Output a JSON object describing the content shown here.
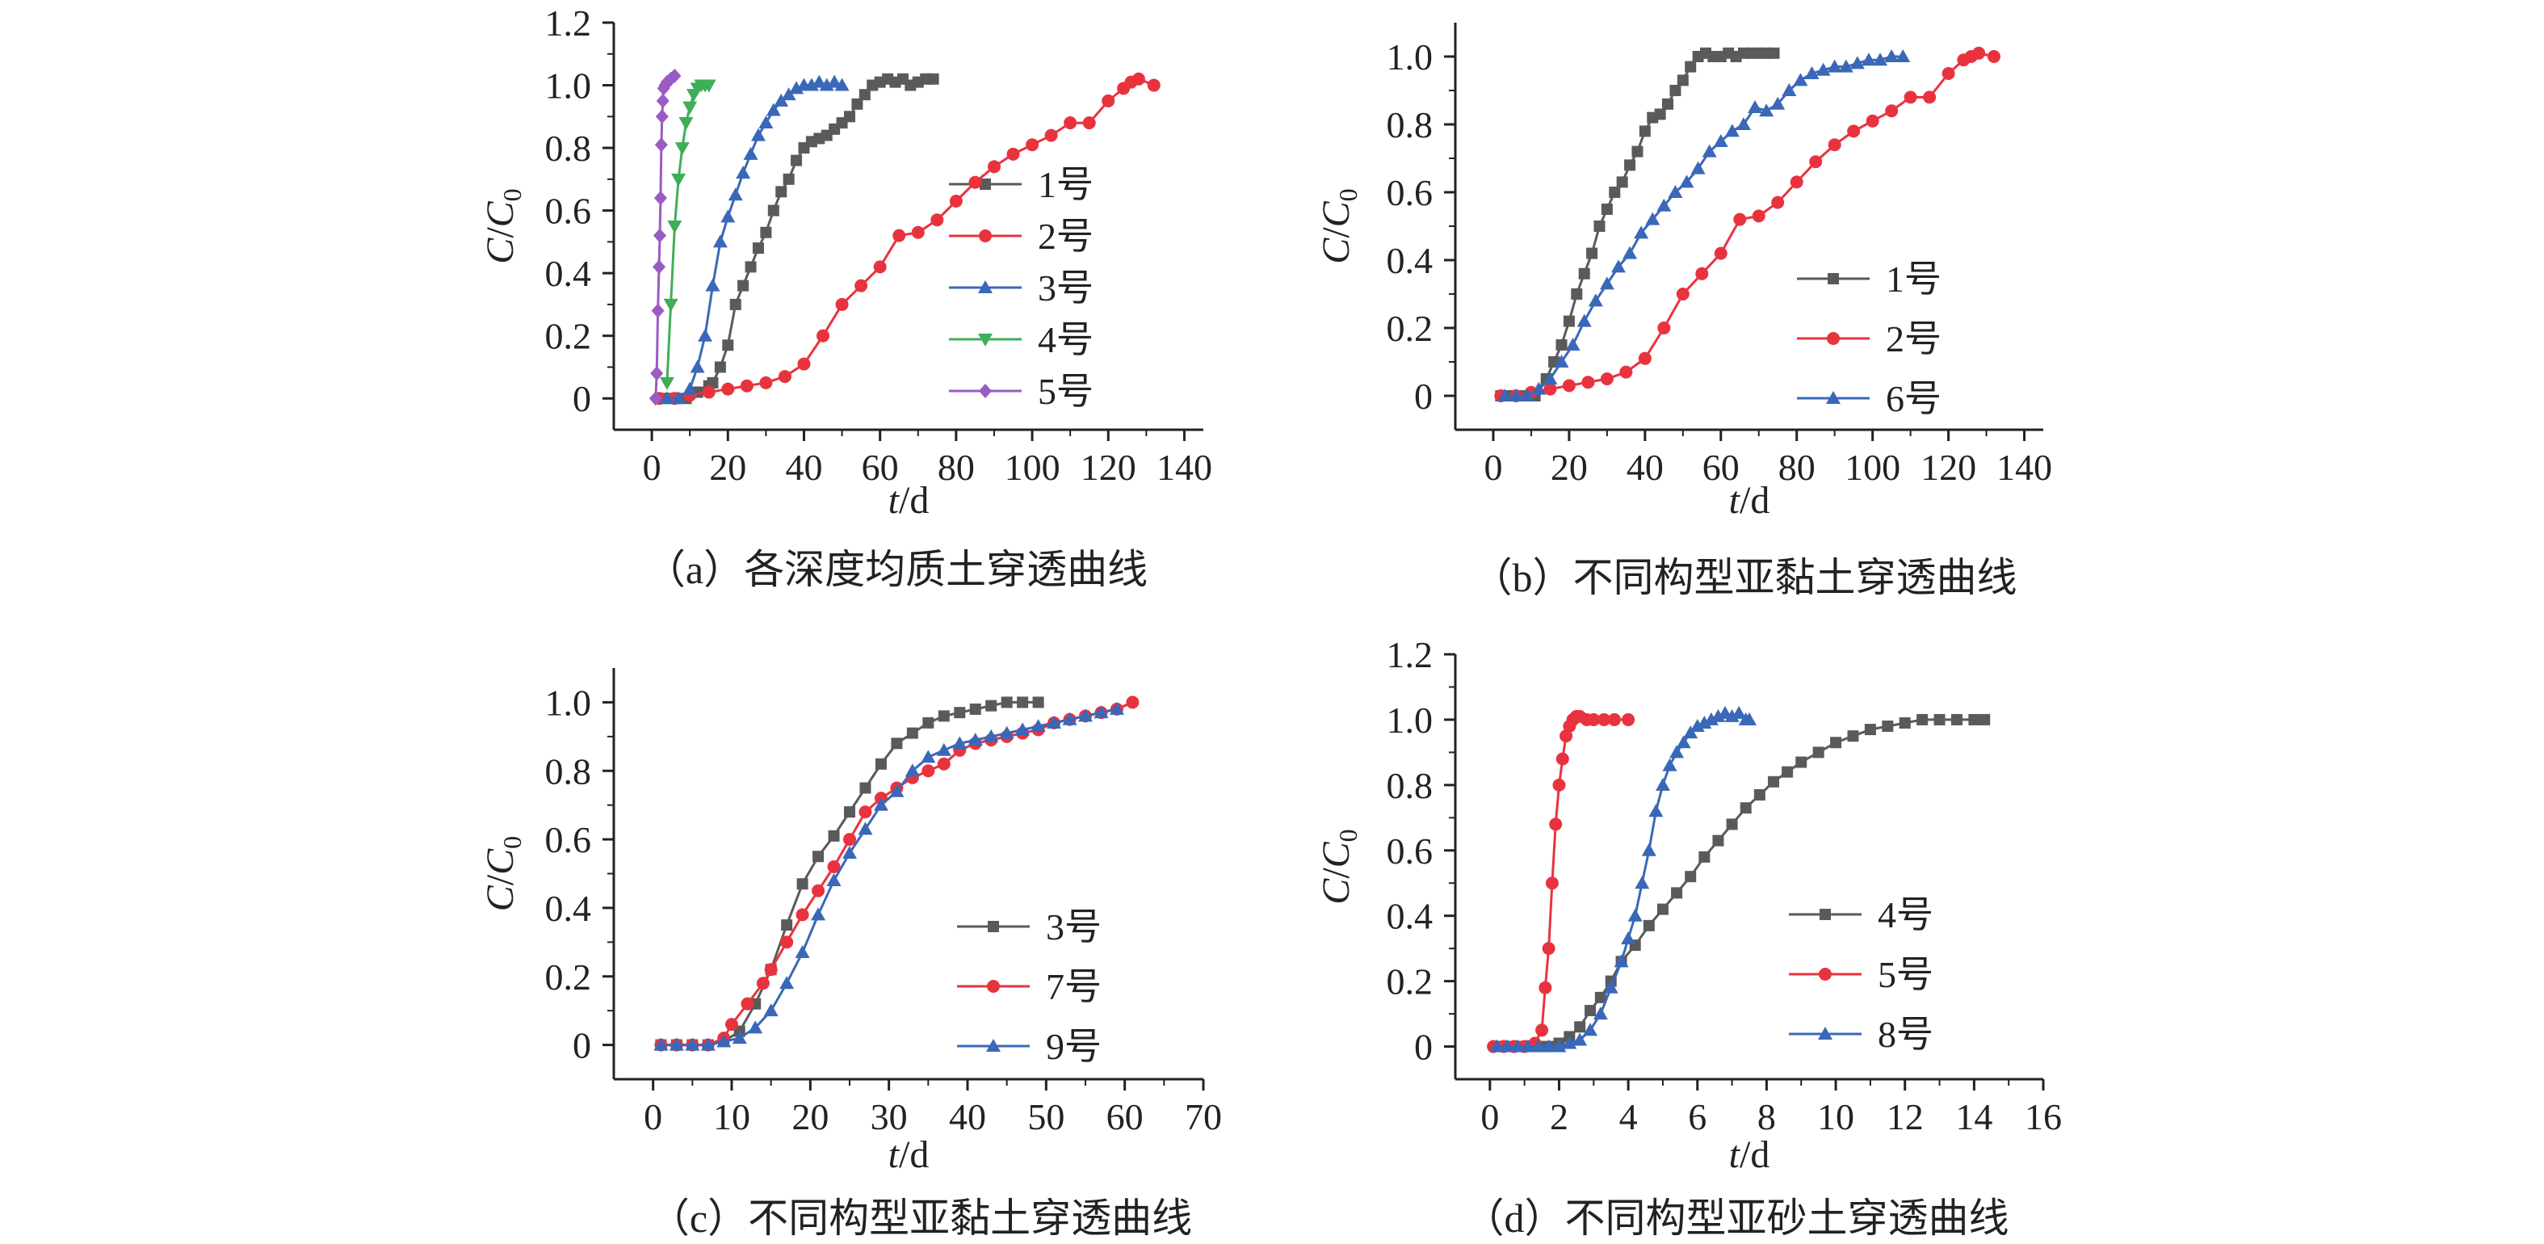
{
  "colors": {
    "s1": "#5a5a5a",
    "s2": "#e8333f",
    "s3": "#3a68b8",
    "s4": "#3fae59",
    "s5": "#9a5bc4",
    "axis": "#222222"
  },
  "chart_data": [
    {
      "type": "line",
      "caption": "（a）各深度均质土穿透曲线",
      "xlabel": "t/d",
      "ylabel": "C/C0",
      "xlim": [
        -10,
        145
      ],
      "ylim": [
        -0.1,
        1.2
      ],
      "xticks": [
        0,
        20,
        40,
        60,
        80,
        100,
        120,
        140
      ],
      "yticks": [
        0,
        0.2,
        0.4,
        0.6,
        0.8,
        1.0,
        1.2
      ],
      "yticklabels": [
        "0",
        "0.2",
        "0.4",
        "0.6",
        "0.8",
        "1.0",
        "1.2"
      ],
      "legend_position": "right",
      "series": [
        {
          "name": "1号",
          "color": "#5a5a5a",
          "marker": "square",
          "x": [
            3,
            6,
            9,
            12,
            15,
            16,
            18,
            20,
            22,
            24,
            26,
            28,
            30,
            32,
            34,
            36,
            38,
            40,
            42,
            44,
            46,
            48,
            50,
            52,
            54,
            56,
            58,
            60,
            62,
            64,
            66,
            68,
            70,
            72,
            74
          ],
          "y": [
            0,
            0,
            0,
            0.02,
            0.04,
            0.05,
            0.1,
            0.17,
            0.3,
            0.36,
            0.42,
            0.48,
            0.53,
            0.6,
            0.66,
            0.7,
            0.76,
            0.8,
            0.82,
            0.83,
            0.84,
            0.86,
            0.88,
            0.9,
            0.94,
            0.97,
            1.0,
            1.01,
            1.02,
            1.01,
            1.02,
            1.0,
            1.01,
            1.02,
            1.02
          ]
        },
        {
          "name": "2号",
          "color": "#e8333f",
          "marker": "circle",
          "x": [
            2,
            6,
            10,
            15,
            20,
            25,
            30,
            35,
            40,
            45,
            50,
            55,
            60,
            65,
            70,
            75,
            80,
            85,
            90,
            95,
            100,
            105,
            110,
            115,
            120,
            124,
            126,
            128,
            132
          ],
          "y": [
            0,
            0,
            0.01,
            0.02,
            0.03,
            0.04,
            0.05,
            0.07,
            0.11,
            0.2,
            0.3,
            0.36,
            0.42,
            0.52,
            0.53,
            0.57,
            0.63,
            0.69,
            0.74,
            0.78,
            0.81,
            0.84,
            0.88,
            0.88,
            0.95,
            0.99,
            1.01,
            1.02,
            1.0
          ]
        },
        {
          "name": "3号",
          "color": "#3a68b8",
          "marker": "triangle",
          "x": [
            4,
            7,
            10,
            12,
            14,
            16,
            18,
            20,
            22,
            24,
            26,
            28,
            30,
            32,
            34,
            36,
            38,
            40,
            42,
            44,
            46,
            48,
            50
          ],
          "y": [
            0,
            0,
            0.03,
            0.1,
            0.2,
            0.36,
            0.5,
            0.58,
            0.65,
            0.72,
            0.78,
            0.84,
            0.88,
            0.92,
            0.95,
            0.97,
            0.99,
            1.0,
            1.0,
            1.01,
            1.0,
            1.01,
            1.0
          ]
        },
        {
          "name": "4号",
          "color": "#3fae59",
          "marker": "triangle-down",
          "x": [
            4,
            5,
            6,
            7,
            8,
            9,
            10,
            11,
            12,
            13,
            14,
            15
          ],
          "y": [
            0.05,
            0.3,
            0.55,
            0.7,
            0.8,
            0.88,
            0.93,
            0.97,
            0.99,
            1.0,
            1.0,
            1.0
          ]
        },
        {
          "name": "5号",
          "color": "#9a5bc4",
          "marker": "diamond",
          "x": [
            1,
            1.3,
            1.6,
            1.9,
            2.1,
            2.3,
            2.5,
            2.7,
            2.9,
            3.1,
            3.5,
            4,
            5,
            6
          ],
          "y": [
            0,
            0.08,
            0.28,
            0.42,
            0.52,
            0.64,
            0.81,
            0.9,
            0.95,
            0.99,
            1.0,
            1.01,
            1.02,
            1.03
          ]
        }
      ]
    },
    {
      "type": "line",
      "caption": "（b）不同构型亚黏土穿透曲线",
      "xlabel": "t/d",
      "ylabel": "C/C0",
      "xlim": [
        -10,
        145
      ],
      "ylim": [
        -0.1,
        1.1
      ],
      "xticks": [
        0,
        20,
        40,
        60,
        80,
        100,
        120,
        140
      ],
      "yticks": [
        0,
        0.2,
        0.4,
        0.6,
        0.8,
        1.0
      ],
      "yticklabels": [
        "0",
        "0.2",
        "0.4",
        "0.6",
        "0.8",
        "1.0"
      ],
      "legend_position": "right",
      "series": [
        {
          "name": "1号",
          "color": "#5a5a5a",
          "marker": "square",
          "x": [
            2,
            5,
            8,
            11,
            14,
            16,
            18,
            20,
            22,
            24,
            26,
            28,
            30,
            32,
            34,
            36,
            38,
            40,
            42,
            44,
            46,
            48,
            50,
            52,
            54,
            56,
            58,
            60,
            62,
            64,
            66,
            68,
            70,
            72,
            74
          ],
          "y": [
            0,
            0,
            0,
            0,
            0.05,
            0.1,
            0.15,
            0.22,
            0.3,
            0.36,
            0.42,
            0.5,
            0.55,
            0.6,
            0.63,
            0.68,
            0.72,
            0.78,
            0.82,
            0.83,
            0.86,
            0.9,
            0.93,
            0.97,
            1.0,
            1.01,
            1.0,
            1.0,
            1.01,
            1.0,
            1.01,
            1.01,
            1.01,
            1.01,
            1.01
          ]
        },
        {
          "name": "2号",
          "color": "#e8333f",
          "marker": "circle",
          "x": [
            2,
            6,
            10,
            15,
            20,
            25,
            30,
            35,
            40,
            45,
            50,
            55,
            60,
            65,
            70,
            75,
            80,
            85,
            90,
            95,
            100,
            105,
            110,
            115,
            120,
            124,
            126,
            128,
            132
          ],
          "y": [
            0,
            0,
            0.01,
            0.02,
            0.03,
            0.04,
            0.05,
            0.07,
            0.11,
            0.2,
            0.3,
            0.36,
            0.42,
            0.52,
            0.53,
            0.57,
            0.63,
            0.69,
            0.74,
            0.78,
            0.81,
            0.84,
            0.88,
            0.88,
            0.95,
            0.99,
            1.0,
            1.01,
            1.0
          ]
        },
        {
          "name": "6号",
          "color": "#3a68b8",
          "marker": "triangle",
          "x": [
            3,
            6,
            9,
            12,
            15,
            18,
            21,
            24,
            27,
            30,
            33,
            36,
            39,
            42,
            45,
            48,
            51,
            54,
            57,
            60,
            63,
            66,
            69,
            72,
            75,
            78,
            81,
            84,
            87,
            90,
            93,
            96,
            99,
            102,
            105,
            108
          ],
          "y": [
            0,
            0,
            0,
            0.02,
            0.05,
            0.1,
            0.15,
            0.22,
            0.28,
            0.33,
            0.38,
            0.42,
            0.48,
            0.52,
            0.56,
            0.6,
            0.63,
            0.67,
            0.72,
            0.75,
            0.78,
            0.8,
            0.85,
            0.84,
            0.86,
            0.9,
            0.93,
            0.95,
            0.96,
            0.97,
            0.97,
            0.98,
            0.99,
            0.99,
            1.0,
            1.0
          ]
        }
      ]
    },
    {
      "type": "line",
      "caption": "（c）不同构型亚黏土穿透曲线",
      "xlabel": "t/d",
      "ylabel": "C/C0",
      "xlim": [
        -5,
        70
      ],
      "ylim": [
        -0.1,
        1.1
      ],
      "xticks": [
        0,
        10,
        20,
        30,
        40,
        50,
        60,
        70
      ],
      "yticks": [
        0,
        0.2,
        0.4,
        0.6,
        0.8,
        1.0
      ],
      "yticklabels": [
        "0",
        "0.2",
        "0.4",
        "0.6",
        "0.8",
        "1.0"
      ],
      "legend_position": "right",
      "series": [
        {
          "name": "3号",
          "color": "#5a5a5a",
          "marker": "square",
          "x": [
            1,
            3,
            5,
            7,
            9,
            11,
            13,
            15,
            17,
            19,
            21,
            23,
            25,
            27,
            29,
            31,
            33,
            35,
            37,
            39,
            41,
            43,
            45,
            47,
            49
          ],
          "y": [
            0,
            0,
            0,
            0,
            0.01,
            0.04,
            0.12,
            0.22,
            0.35,
            0.47,
            0.55,
            0.61,
            0.68,
            0.75,
            0.82,
            0.88,
            0.91,
            0.94,
            0.96,
            0.97,
            0.98,
            0.99,
            1.0,
            1.0,
            1.0
          ]
        },
        {
          "name": "7号",
          "color": "#e8333f",
          "marker": "circle",
          "x": [
            1,
            3,
            5,
            7,
            9,
            10,
            12,
            14,
            15,
            17,
            19,
            21,
            23,
            25,
            27,
            29,
            31,
            33,
            35,
            37,
            39,
            41,
            43,
            45,
            47,
            49,
            51,
            53,
            55,
            57,
            59,
            61
          ],
          "y": [
            0,
            0,
            0,
            0,
            0.02,
            0.06,
            0.12,
            0.18,
            0.22,
            0.3,
            0.38,
            0.45,
            0.52,
            0.6,
            0.68,
            0.72,
            0.75,
            0.78,
            0.8,
            0.82,
            0.86,
            0.88,
            0.89,
            0.9,
            0.91,
            0.92,
            0.94,
            0.95,
            0.96,
            0.97,
            0.98,
            1.0
          ]
        },
        {
          "name": "9号",
          "color": "#3a68b8",
          "marker": "triangle",
          "x": [
            1,
            3,
            5,
            7,
            9,
            11,
            13,
            15,
            17,
            19,
            21,
            23,
            25,
            27,
            29,
            31,
            33,
            35,
            37,
            39,
            41,
            43,
            45,
            47,
            49,
            51,
            53,
            55,
            57,
            59
          ],
          "y": [
            0,
            0,
            0,
            0,
            0.01,
            0.02,
            0.05,
            0.1,
            0.18,
            0.27,
            0.38,
            0.48,
            0.56,
            0.63,
            0.7,
            0.74,
            0.8,
            0.84,
            0.86,
            0.88,
            0.89,
            0.9,
            0.91,
            0.92,
            0.93,
            0.94,
            0.95,
            0.96,
            0.97,
            0.98
          ]
        }
      ]
    },
    {
      "type": "line",
      "caption": "（d）不同构型亚砂土穿透曲线",
      "xlabel": "t/d",
      "ylabel": "C/C0",
      "xlim": [
        -1,
        16
      ],
      "ylim": [
        -0.1,
        1.2
      ],
      "xticks": [
        0,
        2,
        4,
        6,
        8,
        10,
        12,
        14,
        16
      ],
      "yticks": [
        0,
        0.2,
        0.4,
        0.6,
        0.8,
        1.0,
        1.2
      ],
      "yticklabels": [
        "0",
        "0.2",
        "0.4",
        "0.6",
        "0.8",
        "1.0",
        "1.2"
      ],
      "legend_position": "right",
      "series": [
        {
          "name": "4号",
          "color": "#5a5a5a",
          "marker": "square",
          "x": [
            0.2,
            0.5,
            0.8,
            1.1,
            1.4,
            1.7,
            2,
            2.3,
            2.6,
            2.9,
            3.2,
            3.5,
            3.8,
            4.2,
            4.6,
            5,
            5.4,
            5.8,
            6.2,
            6.6,
            7,
            7.4,
            7.8,
            8.2,
            8.6,
            9,
            9.5,
            10,
            10.5,
            11,
            11.5,
            12,
            12.5,
            13,
            13.5,
            14,
            14.3
          ],
          "y": [
            0,
            0,
            0,
            0,
            0,
            0,
            0.01,
            0.03,
            0.06,
            0.11,
            0.15,
            0.2,
            0.26,
            0.31,
            0.37,
            0.42,
            0.47,
            0.52,
            0.58,
            0.63,
            0.68,
            0.73,
            0.77,
            0.81,
            0.84,
            0.87,
            0.9,
            0.93,
            0.95,
            0.97,
            0.98,
            0.99,
            1.0,
            1.0,
            1.0,
            1.0,
            1.0
          ]
        },
        {
          "name": "5号",
          "color": "#e8333f",
          "marker": "circle",
          "x": [
            0.1,
            0.4,
            0.7,
            1,
            1.3,
            1.5,
            1.6,
            1.7,
            1.8,
            1.9,
            2,
            2.1,
            2.2,
            2.3,
            2.4,
            2.5,
            2.6,
            2.8,
            3,
            3.3,
            3.6,
            4
          ],
          "y": [
            0,
            0,
            0,
            0,
            0.01,
            0.05,
            0.18,
            0.3,
            0.5,
            0.68,
            0.8,
            0.88,
            0.95,
            0.98,
            1.0,
            1.01,
            1.01,
            1.0,
            1.0,
            1.0,
            1.0,
            1.0
          ]
        },
        {
          "name": "8号",
          "color": "#3a68b8",
          "marker": "triangle",
          "x": [
            0.2,
            0.5,
            0.8,
            1.1,
            1.4,
            1.7,
            2,
            2.3,
            2.6,
            2.9,
            3.2,
            3.5,
            3.8,
            4,
            4.2,
            4.4,
            4.6,
            4.8,
            5,
            5.2,
            5.4,
            5.6,
            5.8,
            6,
            6.2,
            6.4,
            6.6,
            6.8,
            7,
            7.2,
            7.4,
            7.5
          ],
          "y": [
            0,
            0,
            0,
            0,
            0,
            0,
            0,
            0.01,
            0.02,
            0.05,
            0.1,
            0.18,
            0.26,
            0.33,
            0.4,
            0.5,
            0.6,
            0.72,
            0.8,
            0.86,
            0.9,
            0.93,
            0.96,
            0.98,
            0.99,
            1.0,
            1.01,
            1.02,
            1.01,
            1.02,
            1.0,
            1.0
          ]
        }
      ]
    }
  ]
}
